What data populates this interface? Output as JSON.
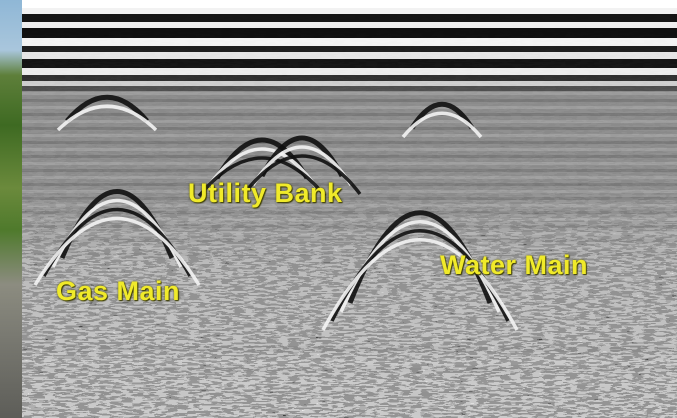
{
  "labels": {
    "utility_bank": "Utility Bank",
    "gas_main": "Gas Main",
    "water_main": "Water Main"
  },
  "colors": {
    "label": "#f0ea2a",
    "dark_band": "#111111",
    "light_band": "#f4f4f4",
    "mid_gray": "#808080"
  }
}
